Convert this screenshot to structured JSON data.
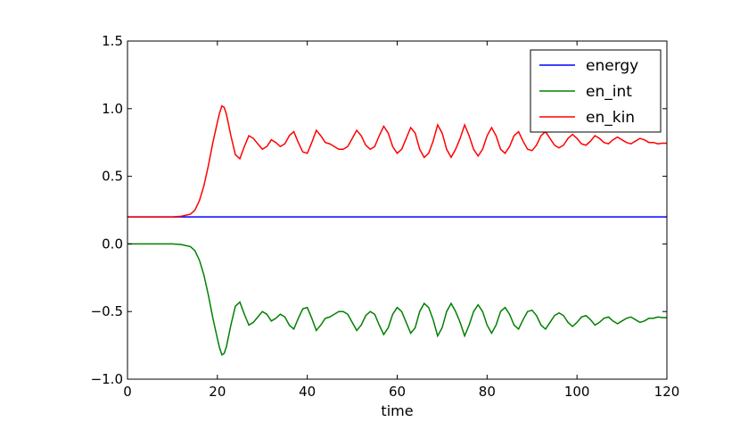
{
  "chart_data": {
    "type": "line",
    "title": "",
    "xlabel": "time",
    "ylabel": "",
    "xlim": [
      0,
      120
    ],
    "ylim": [
      -1.0,
      1.5
    ],
    "xticks": [
      0,
      20,
      40,
      60,
      80,
      100,
      120
    ],
    "xtick_labels": [
      "0",
      "20",
      "40",
      "60",
      "80",
      "100",
      "120"
    ],
    "yticks": [
      -1.0,
      -0.5,
      0.0,
      0.5,
      1.0,
      1.5
    ],
    "ytick_labels": [
      "−1.0",
      "−0.5",
      "0.0",
      "0.5",
      "1.0",
      "1.5"
    ],
    "grid": false,
    "legend_position": "top-right",
    "series": [
      {
        "name": "energy",
        "color": "#0000ff",
        "x": [
          0,
          120
        ],
        "y": [
          0.2,
          0.2
        ]
      },
      {
        "name": "en_int",
        "color": "#008000",
        "x": [
          0,
          5,
          10,
          12,
          14,
          15,
          16,
          17,
          18,
          19,
          20,
          20.5,
          21,
          21.5,
          22,
          23,
          24,
          25,
          26,
          27,
          28,
          29,
          30,
          31,
          32,
          33,
          34,
          35,
          36,
          37,
          38,
          39,
          40,
          41,
          42,
          43,
          44,
          45,
          46,
          47,
          48,
          49,
          50,
          51,
          52,
          53,
          54,
          55,
          56,
          57,
          58,
          59,
          60,
          61,
          62,
          63,
          64,
          65,
          66,
          67,
          68,
          69,
          70,
          71,
          72,
          73,
          74,
          75,
          76,
          77,
          78,
          79,
          80,
          81,
          82,
          83,
          84,
          85,
          86,
          87,
          88,
          89,
          90,
          91,
          92,
          93,
          94,
          95,
          96,
          97,
          98,
          99,
          100,
          101,
          102,
          103,
          104,
          105,
          106,
          107,
          108,
          109,
          110,
          111,
          112,
          113,
          114,
          115,
          116,
          117,
          118,
          119,
          120
        ],
        "y": [
          0.0,
          0.0,
          0.0,
          -0.005,
          -0.02,
          -0.05,
          -0.12,
          -0.23,
          -0.38,
          -0.55,
          -0.7,
          -0.77,
          -0.82,
          -0.81,
          -0.76,
          -0.6,
          -0.46,
          -0.43,
          -0.52,
          -0.6,
          -0.58,
          -0.54,
          -0.5,
          -0.52,
          -0.57,
          -0.55,
          -0.52,
          -0.54,
          -0.6,
          -0.63,
          -0.55,
          -0.48,
          -0.47,
          -0.55,
          -0.64,
          -0.6,
          -0.55,
          -0.54,
          -0.52,
          -0.5,
          -0.5,
          -0.52,
          -0.58,
          -0.64,
          -0.6,
          -0.53,
          -0.5,
          -0.52,
          -0.6,
          -0.67,
          -0.62,
          -0.52,
          -0.47,
          -0.5,
          -0.58,
          -0.66,
          -0.62,
          -0.5,
          -0.44,
          -0.47,
          -0.56,
          -0.68,
          -0.62,
          -0.5,
          -0.44,
          -0.5,
          -0.58,
          -0.68,
          -0.6,
          -0.5,
          -0.45,
          -0.5,
          -0.6,
          -0.66,
          -0.6,
          -0.5,
          -0.47,
          -0.52,
          -0.6,
          -0.63,
          -0.56,
          -0.5,
          -0.49,
          -0.53,
          -0.6,
          -0.63,
          -0.58,
          -0.53,
          -0.51,
          -0.53,
          -0.58,
          -0.61,
          -0.58,
          -0.54,
          -0.53,
          -0.56,
          -0.6,
          -0.58,
          -0.55,
          -0.54,
          -0.57,
          -0.59,
          -0.57,
          -0.55,
          -0.54,
          -0.56,
          -0.58,
          -0.57,
          -0.55,
          -0.55,
          -0.54,
          -0.545,
          -0.545
        ]
      },
      {
        "name": "en_kin",
        "color": "#ff0000",
        "x": [
          0,
          5,
          10,
          12,
          14,
          15,
          16,
          17,
          18,
          19,
          20,
          20.5,
          21,
          21.5,
          22,
          23,
          24,
          25,
          26,
          27,
          28,
          29,
          30,
          31,
          32,
          33,
          34,
          35,
          36,
          37,
          38,
          39,
          40,
          41,
          42,
          43,
          44,
          45,
          46,
          47,
          48,
          49,
          50,
          51,
          52,
          53,
          54,
          55,
          56,
          57,
          58,
          59,
          60,
          61,
          62,
          63,
          64,
          65,
          66,
          67,
          68,
          69,
          70,
          71,
          72,
          73,
          74,
          75,
          76,
          77,
          78,
          79,
          80,
          81,
          82,
          83,
          84,
          85,
          86,
          87,
          88,
          89,
          90,
          91,
          92,
          93,
          94,
          95,
          96,
          97,
          98,
          99,
          100,
          101,
          102,
          103,
          104,
          105,
          106,
          107,
          108,
          109,
          110,
          111,
          112,
          113,
          114,
          115,
          116,
          117,
          118,
          119,
          120
        ],
        "y": [
          0.2,
          0.2,
          0.2,
          0.205,
          0.22,
          0.25,
          0.32,
          0.43,
          0.58,
          0.75,
          0.9,
          0.97,
          1.02,
          1.01,
          0.96,
          0.8,
          0.66,
          0.63,
          0.72,
          0.8,
          0.78,
          0.74,
          0.7,
          0.72,
          0.77,
          0.75,
          0.72,
          0.74,
          0.8,
          0.83,
          0.75,
          0.68,
          0.67,
          0.75,
          0.84,
          0.8,
          0.75,
          0.74,
          0.72,
          0.7,
          0.7,
          0.72,
          0.78,
          0.84,
          0.8,
          0.73,
          0.7,
          0.72,
          0.8,
          0.87,
          0.82,
          0.72,
          0.67,
          0.7,
          0.78,
          0.86,
          0.82,
          0.7,
          0.64,
          0.67,
          0.76,
          0.88,
          0.82,
          0.7,
          0.64,
          0.7,
          0.78,
          0.88,
          0.8,
          0.7,
          0.65,
          0.7,
          0.8,
          0.86,
          0.8,
          0.7,
          0.67,
          0.72,
          0.8,
          0.83,
          0.76,
          0.7,
          0.69,
          0.73,
          0.8,
          0.83,
          0.78,
          0.73,
          0.71,
          0.73,
          0.78,
          0.81,
          0.78,
          0.74,
          0.73,
          0.76,
          0.8,
          0.78,
          0.75,
          0.74,
          0.77,
          0.79,
          0.77,
          0.75,
          0.74,
          0.76,
          0.78,
          0.77,
          0.75,
          0.75,
          0.74,
          0.745,
          0.745
        ]
      }
    ]
  }
}
